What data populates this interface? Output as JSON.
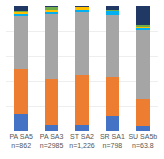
{
  "chart_data": {
    "type": "bar",
    "stacked": true,
    "categories": [
      "PA SA5\nn=862",
      "PA SA3\nn=2985",
      "ST SA2\nn=1,226",
      "SR SA1\nn=798",
      "SU SA5b\nn=63.8"
    ],
    "series": [
      {
        "color": "#4472c4",
        "values": [
          0.14,
          0.05,
          0.05,
          0.12,
          0.04
        ]
      },
      {
        "color": "#ed7d31",
        "values": [
          0.36,
          0.37,
          0.4,
          0.31,
          0.22
        ]
      },
      {
        "color": "#a5a5a5",
        "values": [
          0.42,
          0.52,
          0.5,
          0.5,
          0.55
        ]
      },
      {
        "color": "#00b0f0",
        "values": [
          0.02,
          0.01,
          0.02,
          0.03,
          0.015
        ]
      },
      {
        "color": "#ffc000",
        "values": [
          0.01,
          0.02,
          0.02,
          0.0,
          0.005
        ]
      },
      {
        "color": "#70ad47",
        "values": [
          0.01,
          0.02,
          0.0,
          0.01,
          0.02
        ]
      },
      {
        "color": "#1f3864",
        "values": [
          0.04,
          0.01,
          0.01,
          0.03,
          0.15
        ]
      }
    ],
    "ylim": [
      0,
      1.0
    ],
    "yticks": [
      0,
      0.2,
      0.4,
      0.6,
      0.8,
      1.0
    ],
    "grid": true,
    "tick_labels": "x"
  }
}
